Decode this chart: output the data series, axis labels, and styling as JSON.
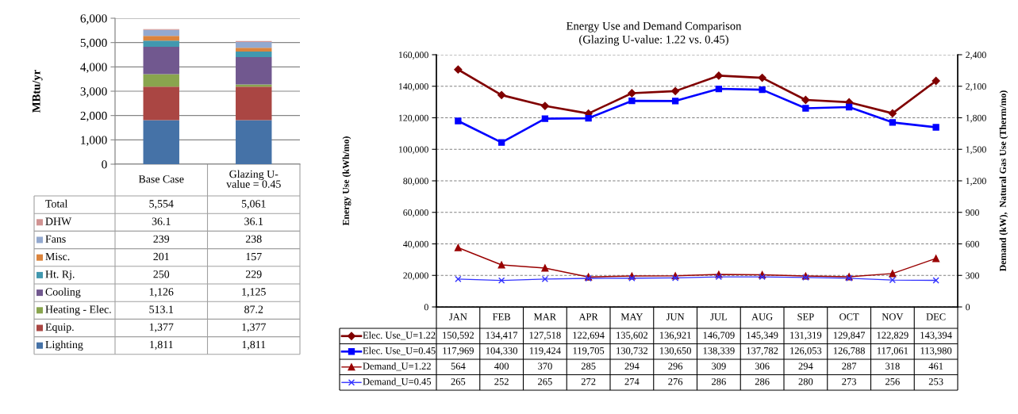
{
  "chart_data": [
    {
      "type": "bar",
      "stacked": true,
      "ylabel": "MBtu/yr",
      "categories": [
        "Base Case",
        "Glazing U-value = 0.45"
      ],
      "ylim": [
        0,
        6000
      ],
      "yticks": [
        0,
        {
          "value": 1000,
          "label": "1,000"
        },
        {
          "value": 2000,
          "label": "2,000"
        },
        {
          "value": 3000,
          "label": "3,000"
        },
        {
          "value": 4000,
          "label": "4,000"
        },
        {
          "value": 5000,
          "label": "5,000"
        },
        {
          "value": 6000,
          "label": "6,000"
        }
      ],
      "grid": "y",
      "legend": "bottom",
      "series": [
        {
          "name": "Lighting",
          "color": "#4572a7",
          "values": [
            1811,
            1811
          ],
          "value_labels": [
            "1,811",
            "1,811"
          ]
        },
        {
          "name": "Equip.",
          "color": "#aa4643",
          "values": [
            1377,
            1377
          ],
          "value_labels": [
            "1,377",
            "1,377"
          ]
        },
        {
          "name": "Heating - Elec.",
          "color": "#89a54e",
          "values": [
            513.1,
            87.2
          ],
          "value_labels": [
            "513.1",
            "87.2"
          ]
        },
        {
          "name": "Cooling",
          "color": "#71588f",
          "values": [
            1126,
            1125
          ],
          "value_labels": [
            "1,126",
            "1,125"
          ]
        },
        {
          "name": "Ht. Rj.",
          "color": "#4198af",
          "values": [
            250,
            229
          ],
          "value_labels": [
            "250",
            "229"
          ]
        },
        {
          "name": "Misc.",
          "color": "#db843d",
          "values": [
            201,
            157
          ],
          "value_labels": [
            "201",
            "157"
          ]
        },
        {
          "name": "Fans",
          "color": "#93a9cf",
          "values": [
            239,
            238
          ],
          "value_labels": [
            "239",
            "238"
          ]
        },
        {
          "name": "DHW",
          "color": "#d19392",
          "values": [
            36.1,
            36.1
          ],
          "value_labels": [
            "36.1",
            "36.1"
          ]
        }
      ],
      "annotations": [
        "Total",
        "5,554",
        "5,061"
      ]
    },
    {
      "type": "line",
      "title": "Energy Use and Demand Comparison",
      "subtitle": "(Glazing U-value: 1.22 vs. 0.45)",
      "ylabel": "Energy Use (kWh/mo)",
      "y2label": "Demand (kW),  Natural Gas Use (Therm/mo)",
      "categories": [
        "JAN",
        "FEB",
        "MAR",
        "APR",
        "MAY",
        "JUN",
        "JUL",
        "AUG",
        "SEP",
        "OCT",
        "NOV",
        "DEC"
      ],
      "ylim": [
        0,
        160000
      ],
      "yticks": [
        0,
        {
          "value": 20000,
          "label": "20,000"
        },
        {
          "value": 40000,
          "label": "40,000"
        },
        {
          "value": 60000,
          "label": "60,000"
        },
        {
          "value": 80000,
          "label": "80,000"
        },
        {
          "value": 100000,
          "label": "100,000"
        },
        {
          "value": 120000,
          "label": "120,000"
        },
        {
          "value": 140000,
          "label": "140,000"
        },
        {
          "value": 160000,
          "label": "160,000"
        }
      ],
      "y2lim": [
        0,
        2400
      ],
      "y2ticks": [
        0,
        300,
        600,
        900,
        {
          "value": 1200,
          "label": "1,200"
        },
        {
          "value": 1500,
          "label": "1,500"
        },
        {
          "value": 1800,
          "label": "1,800"
        },
        {
          "value": 2100,
          "label": "2,100"
        },
        {
          "value": 2400,
          "label": "2,400"
        }
      ],
      "grid": "y",
      "legend": "bottom",
      "line_style": "solid",
      "series": [
        {
          "name": "Elec. Use_U=1.22",
          "color": "#800000",
          "marker": "diamond",
          "values": [
            150592,
            134417,
            127518,
            122694,
            135602,
            136921,
            146709,
            145349,
            131319,
            129847,
            122829,
            143394
          ],
          "value_labels": [
            "150,592",
            "134,417",
            "127,518",
            "122,694",
            "135,602",
            "136,921",
            "146,709",
            "145,349",
            "131,319",
            "129,847",
            "122,829",
            "143,394"
          ]
        },
        {
          "name": "Elec. Use_U=0.45",
          "color": "#0000ff",
          "marker": "square",
          "values": [
            117969,
            104330,
            119424,
            119705,
            130732,
            130650,
            138339,
            137782,
            126053,
            126788,
            117061,
            113980
          ],
          "value_labels": [
            "117,969",
            "104,330",
            "119,424",
            "119,705",
            "130,732",
            "130,650",
            "138,339",
            "137,782",
            "126,053",
            "126,788",
            "117,061",
            "113,980"
          ]
        },
        {
          "name": "Demand_U=1.22",
          "color": "#990000",
          "marker": "triangle",
          "axis": "y2",
          "values": [
            564,
            400,
            370,
            285,
            294,
            296,
            309,
            306,
            294,
            287,
            318,
            461
          ],
          "value_labels": [
            "564",
            "400",
            "370",
            "285",
            "294",
            "296",
            "309",
            "306",
            "294",
            "287",
            "318",
            "461"
          ]
        },
        {
          "name": "Demand_U=0.45",
          "color": "#3333ff",
          "marker": "cross",
          "axis": "y2",
          "values": [
            265,
            252,
            265,
            272,
            274,
            276,
            286,
            286,
            280,
            273,
            256,
            253
          ],
          "value_labels": [
            "265",
            "252",
            "265",
            "272",
            "274",
            "276",
            "286",
            "286",
            "280",
            "273",
            "256",
            "253"
          ]
        }
      ]
    }
  ]
}
